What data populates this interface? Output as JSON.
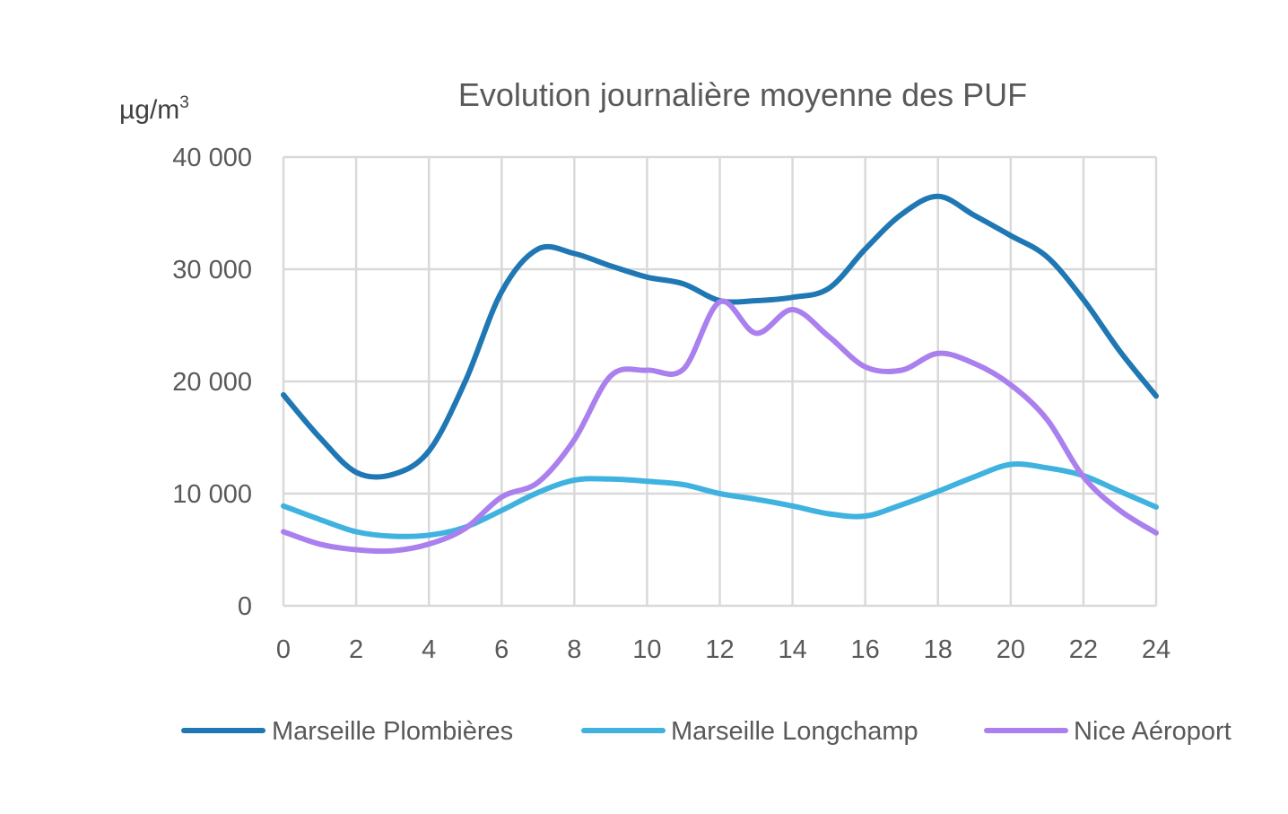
{
  "chart_data": {
    "type": "line",
    "title": "Evolution journalière moyenne des PUF",
    "unit_label": "µg/m",
    "unit_superscript": "3",
    "xlabel": "",
    "ylabel": "",
    "xlim": [
      0,
      24
    ],
    "ylim": [
      0,
      40000
    ],
    "x_ticks": [
      0,
      2,
      4,
      6,
      8,
      10,
      12,
      14,
      16,
      18,
      20,
      22,
      24
    ],
    "y_ticks": [
      0,
      10000,
      20000,
      30000,
      40000
    ],
    "y_tick_labels": [
      "0",
      "10 000",
      "20 000",
      "30 000",
      "40 000"
    ],
    "grid": true,
    "legend_position": "bottom",
    "x": [
      0,
      1,
      2,
      3,
      4,
      5,
      6,
      7,
      8,
      9,
      10,
      11,
      12,
      13,
      14,
      15,
      16,
      17,
      18,
      19,
      20,
      21,
      22,
      23,
      24
    ],
    "series": [
      {
        "name": "Marseille Plombières",
        "color": "#1f77b4",
        "values": [
          18800,
          15000,
          11900,
          11700,
          13800,
          20000,
          28000,
          31800,
          31400,
          30300,
          29300,
          28700,
          27200,
          27200,
          27500,
          28300,
          31800,
          34900,
          36500,
          34800,
          33000,
          31100,
          27300,
          22700,
          18700
        ]
      },
      {
        "name": "Marseille Longchamp",
        "color": "#3fb2e0",
        "values": [
          8900,
          7700,
          6600,
          6200,
          6300,
          7000,
          8500,
          10100,
          11200,
          11300,
          11100,
          10800,
          10000,
          9500,
          8900,
          8200,
          8000,
          9000,
          10200,
          11500,
          12600,
          12300,
          11600,
          10200,
          8800
        ]
      },
      {
        "name": "Nice Aéroport",
        "color": "#aa80ee",
        "values": [
          6600,
          5500,
          5000,
          4900,
          5500,
          6900,
          9700,
          11000,
          14800,
          20500,
          21000,
          21100,
          27100,
          24300,
          26400,
          24000,
          21300,
          21000,
          22500,
          21600,
          19700,
          16600,
          11500,
          8500,
          6500
        ]
      }
    ]
  }
}
